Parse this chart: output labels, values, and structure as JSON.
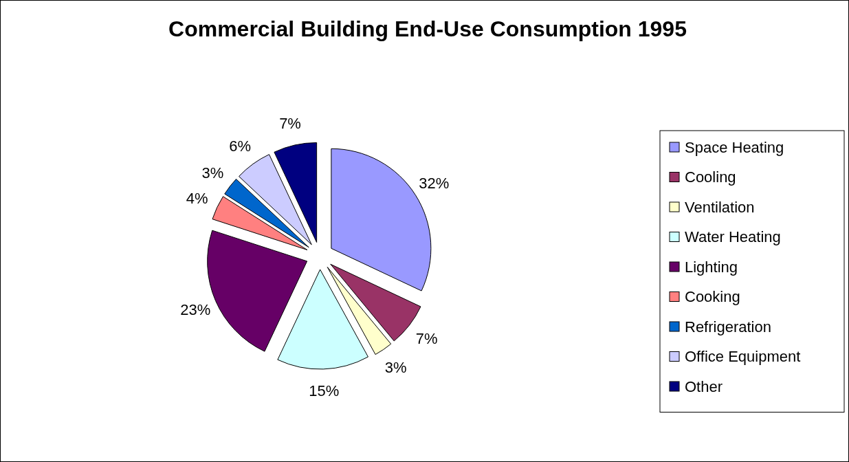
{
  "chart_data": {
    "type": "pie",
    "title": "Commercial Building End-Use Consumption 1995",
    "categories": [
      "Space Heating",
      "Cooling",
      "Ventilation",
      "Water Heating",
      "Lighting",
      "Cooking",
      "Refrigeration",
      "Office Equipment",
      "Other"
    ],
    "values": [
      32,
      7,
      3,
      15,
      23,
      4,
      3,
      6,
      7
    ],
    "colors": [
      "#9999ff",
      "#993366",
      "#ffffcc",
      "#ccffff",
      "#660066",
      "#ff8080",
      "#0066cc",
      "#ccccff",
      "#000080"
    ],
    "value_labels": [
      "32%",
      "7%",
      "3%",
      "15%",
      "23%",
      "4%",
      "3%",
      "6%",
      "7%"
    ],
    "legend": "right"
  }
}
